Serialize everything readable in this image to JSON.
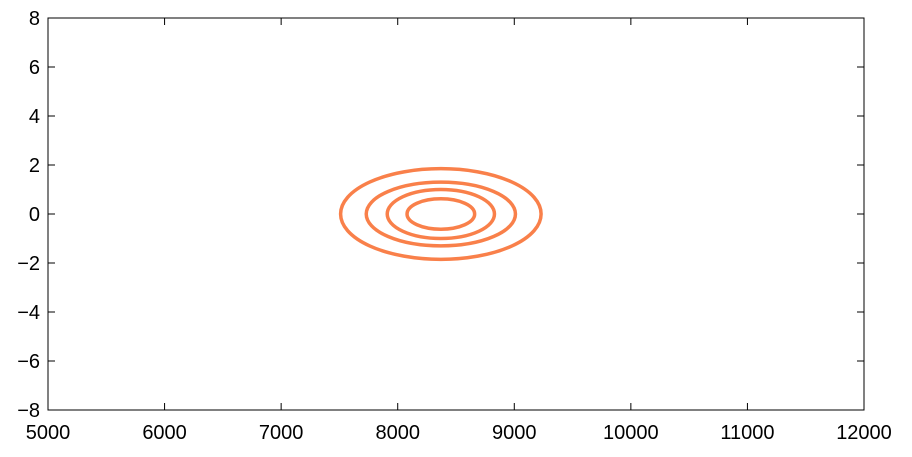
{
  "chart_data": {
    "type": "line",
    "title": "",
    "xlabel": "",
    "ylabel": "",
    "xlim": [
      5000,
      12000
    ],
    "ylim": [
      -8,
      8
    ],
    "xticks": [
      5000,
      6000,
      7000,
      8000,
      9000,
      10000,
      11000,
      12000
    ],
    "yticks": [
      -8,
      -6,
      -4,
      -2,
      0,
      2,
      4,
      6,
      8
    ],
    "xtick_labels": [
      "5000",
      "6000",
      "7000",
      "8000",
      "9000",
      "10000",
      "11000",
      "12000"
    ],
    "ytick_labels": [
      "−8",
      "−6",
      "−4",
      "−2",
      "0",
      "2",
      "4",
      "6",
      "8"
    ],
    "grid": false,
    "line_color": "#f9804a",
    "series": [
      {
        "shape": "ellipse",
        "center": [
          8370,
          0
        ],
        "rx": 860,
        "ry": 1.85
      },
      {
        "shape": "ellipse",
        "center": [
          8370,
          0
        ],
        "rx": 640,
        "ry": 1.3
      },
      {
        "shape": "ellipse",
        "center": [
          8370,
          0
        ],
        "rx": 460,
        "ry": 1.0
      },
      {
        "shape": "ellipse",
        "center": [
          8370,
          0
        ],
        "rx": 290,
        "ry": 0.62
      }
    ]
  }
}
